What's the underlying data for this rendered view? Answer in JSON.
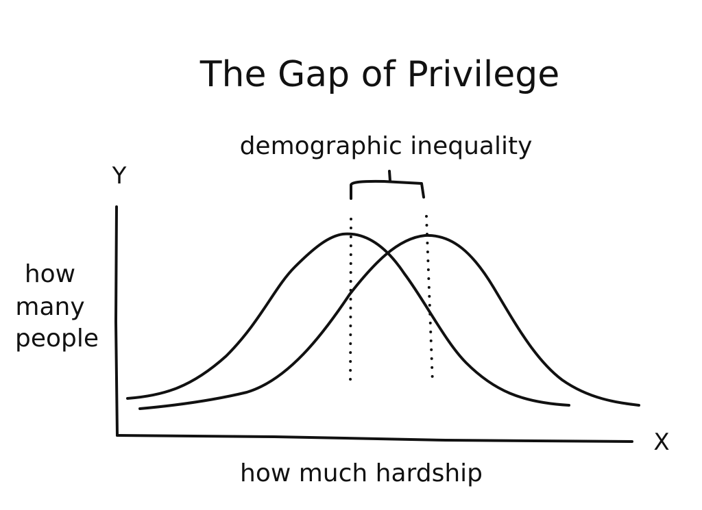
{
  "title": "The Gap of Privilege",
  "annotation": "demographic inequality",
  "y_axis": {
    "letter": "Y",
    "label_lines": [
      "how",
      "many",
      "people"
    ]
  },
  "x_axis": {
    "letter": "X",
    "label": "how much hardship"
  },
  "colors": {
    "ink": "#111111",
    "background": "#ffffff"
  }
}
